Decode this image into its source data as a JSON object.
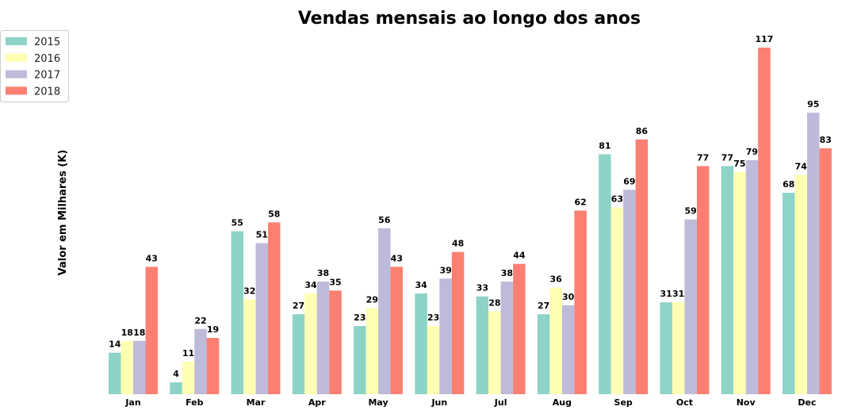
{
  "chart_data": {
    "type": "bar",
    "title": "Vendas mensais ao longo dos anos",
    "xlabel": "",
    "ylabel": "Valor em Milhares (K)",
    "categories": [
      "Jan",
      "Feb",
      "Mar",
      "Apr",
      "May",
      "Jun",
      "Jul",
      "Aug",
      "Sep",
      "Oct",
      "Nov",
      "Dec"
    ],
    "series": [
      {
        "name": "2015",
        "color": "#8dd3c7",
        "values": [
          14,
          4,
          55,
          27,
          23,
          34,
          33,
          27,
          81,
          31,
          77,
          68
        ]
      },
      {
        "name": "2016",
        "color": "#ffffb3",
        "values": [
          18,
          11,
          32,
          34,
          29,
          23,
          28,
          36,
          63,
          31,
          75,
          74
        ]
      },
      {
        "name": "2017",
        "color": "#bebada",
        "values": [
          18,
          22,
          51,
          38,
          56,
          39,
          38,
          30,
          69,
          59,
          79,
          95
        ]
      },
      {
        "name": "2018",
        "color": "#fb8072",
        "values": [
          43,
          19,
          58,
          35,
          43,
          48,
          44,
          62,
          86,
          77,
          117,
          83
        ]
      }
    ],
    "ylim": [
      0,
      117
    ],
    "grid": false,
    "legend_position": "top-left",
    "data_labels": true
  }
}
